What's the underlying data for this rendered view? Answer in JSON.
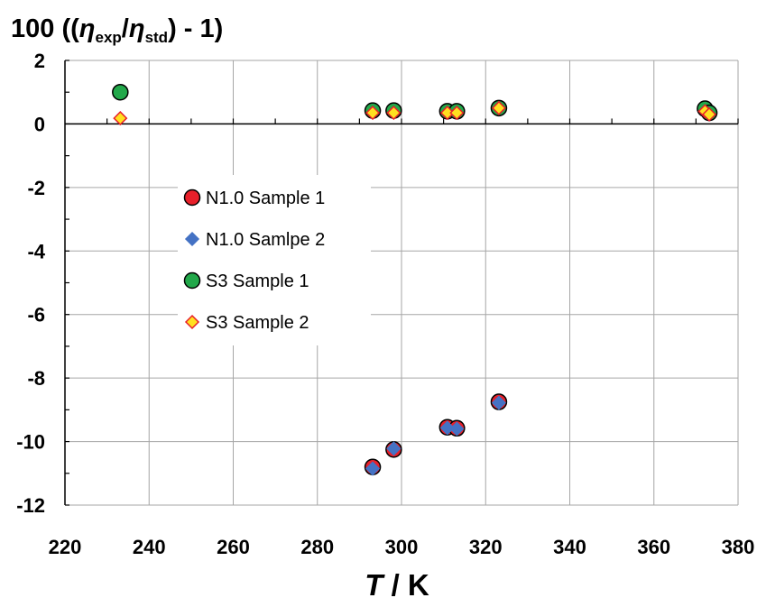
{
  "chart_data": {
    "type": "scatter",
    "title": "",
    "ylabel": {
      "prefix": "100 ((",
      "eta1": "η",
      "sub1": "exp",
      "slash": "/",
      "eta2": "η",
      "sub2": "std",
      "suffix": ") - 1)"
    },
    "xlabel": {
      "italic": "T",
      "rest": " / K"
    },
    "xlim": [
      220,
      380
    ],
    "ylim": [
      -12,
      2
    ],
    "x_ticks": [
      "220",
      "240",
      "260",
      "280",
      "300",
      "320",
      "340",
      "360",
      "380"
    ],
    "y_ticks": [
      "2",
      "0",
      "-2",
      "-4",
      "-6",
      "-8",
      "-10",
      "-12"
    ],
    "grid": true,
    "legend_position": "left, inside plot",
    "series": [
      {
        "name": "N1.0 Sample 1",
        "marker": "circle",
        "fill": "#e8202a",
        "stroke": "#000000",
        "points": [
          [
            293.15,
            -10.8
          ],
          [
            298.15,
            -10.25
          ],
          [
            310.9,
            -9.55
          ],
          [
            313.15,
            -9.58
          ],
          [
            323.15,
            -8.75
          ]
        ]
      },
      {
        "name": "N1.0 Samlpe 2",
        "marker": "diamond",
        "fill": "#4472c4",
        "stroke": "#4472c4",
        "points": [
          [
            293.15,
            -10.85
          ],
          [
            298.15,
            -10.22
          ],
          [
            310.9,
            -9.57
          ],
          [
            313.15,
            -9.6
          ],
          [
            323.15,
            -8.78
          ]
        ]
      },
      {
        "name": "S3 Sample 1",
        "marker": "circle",
        "fill": "#22a84a",
        "stroke": "#000000",
        "points": [
          [
            233.15,
            1.0
          ],
          [
            293.15,
            0.42
          ],
          [
            298.15,
            0.42
          ],
          [
            310.9,
            0.4
          ],
          [
            313.15,
            0.4
          ],
          [
            323.15,
            0.5
          ],
          [
            372.15,
            0.48
          ],
          [
            373.15,
            0.35
          ]
        ]
      },
      {
        "name": "S3 Sample 2",
        "marker": "diamond",
        "fill": "#ffe020",
        "stroke": "#e8202a",
        "points": [
          [
            233.15,
            0.18
          ],
          [
            293.15,
            0.35
          ],
          [
            298.15,
            0.35
          ],
          [
            310.9,
            0.35
          ],
          [
            313.15,
            0.35
          ],
          [
            323.15,
            0.5
          ],
          [
            372.15,
            0.4
          ],
          [
            373.15,
            0.3
          ]
        ]
      }
    ]
  }
}
